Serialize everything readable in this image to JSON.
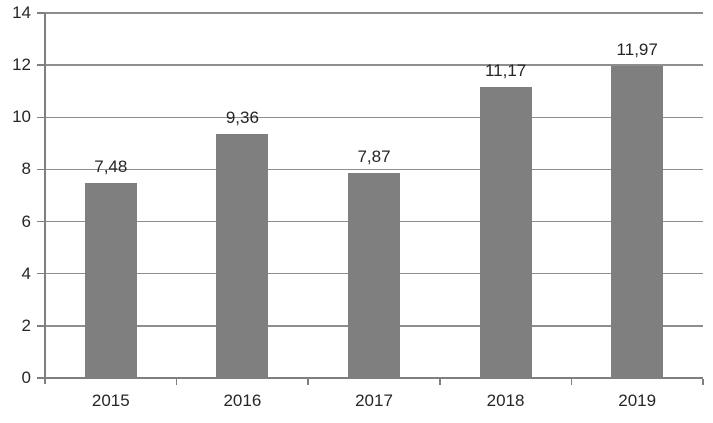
{
  "chart_data": {
    "type": "bar",
    "categories": [
      "2015",
      "2016",
      "2017",
      "2018",
      "2019"
    ],
    "values": [
      7.48,
      9.36,
      7.87,
      11.17,
      11.97
    ],
    "value_labels": [
      "7,48",
      "9,36",
      "7,87",
      "11,17",
      "11,97"
    ],
    "ytick_labels": [
      "0",
      "2",
      "4",
      "6",
      "8",
      "10",
      "12",
      "14"
    ],
    "title": "",
    "xlabel": "",
    "ylabel": "",
    "ylim": [
      0,
      14
    ],
    "ytick_step": 2,
    "grid": true,
    "legend": "none",
    "colors": {
      "bar": "#7f7f7f",
      "grid": "#8e8e8e",
      "axis": "#7f7f7f",
      "text": "#262626",
      "background": "#ffffff"
    }
  }
}
